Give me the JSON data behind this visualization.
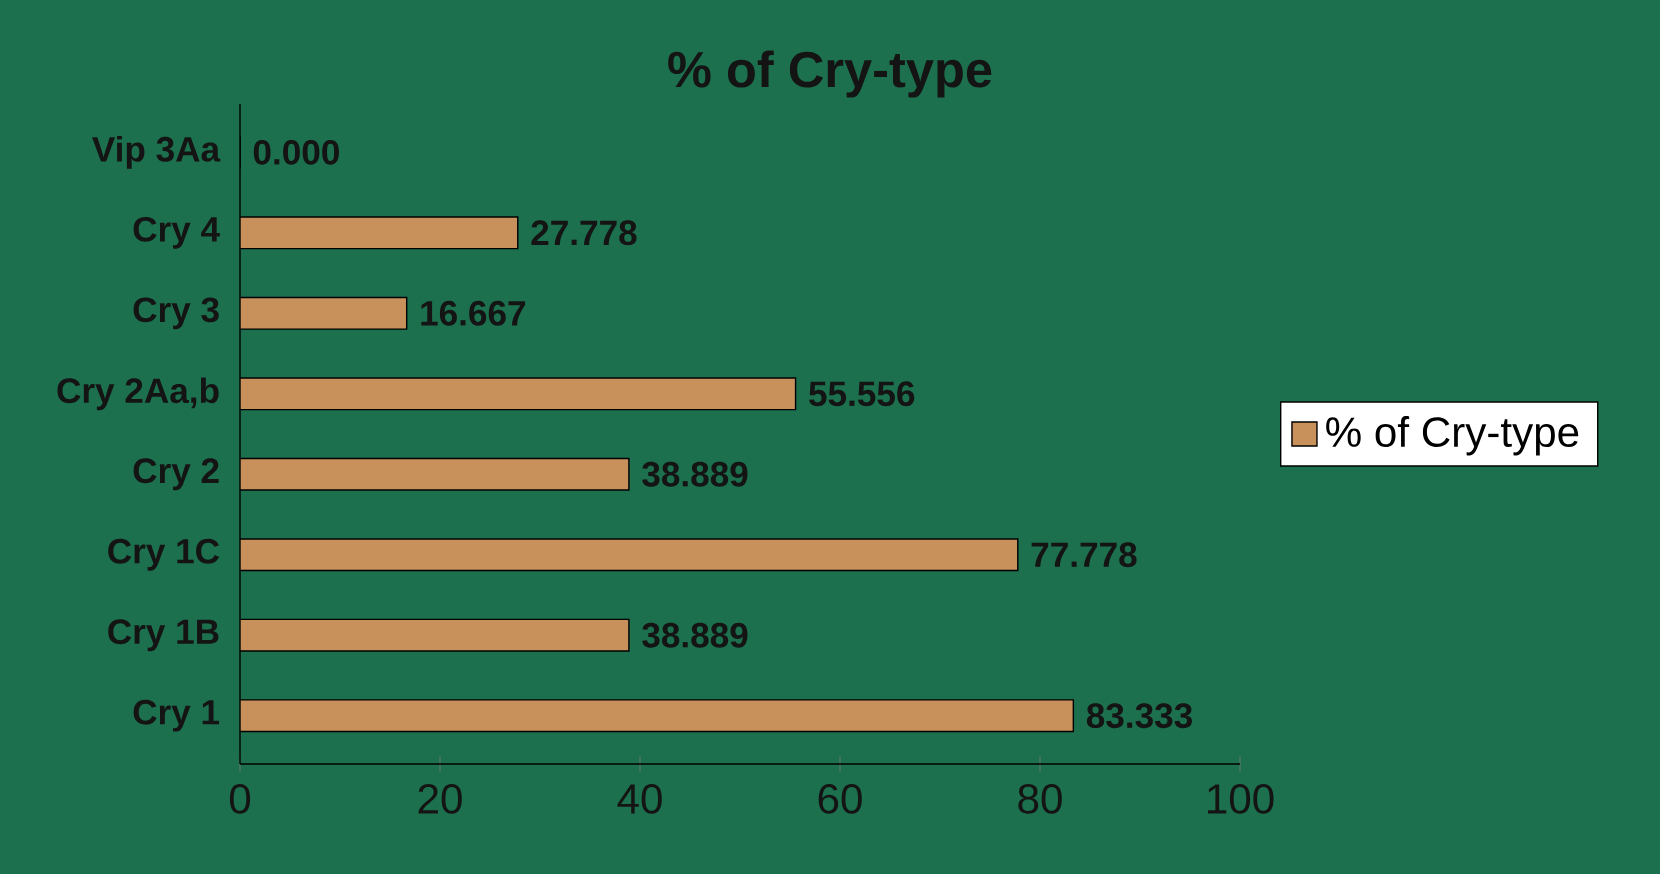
{
  "chart_data": {
    "type": "bar",
    "orientation": "horizontal",
    "title": "% of Cry-type",
    "categories": [
      "Vip 3Aa",
      "Cry 4",
      "Cry 3",
      "Cry 2Aa,b",
      "Cry 2",
      "Cry 1C",
      "Cry 1B",
      "Cry 1"
    ],
    "series": [
      {
        "name": "% of Cry-type",
        "color": "#c8915c",
        "values": [
          0,
          27.778,
          16.667,
          55.556,
          38.889,
          77.778,
          38.889,
          83.333
        ],
        "value_labels": [
          "0.000",
          "27.778",
          "16.667",
          "55.556",
          "38.889",
          "77.778",
          "38.889",
          "83.333"
        ]
      }
    ],
    "xlim": [
      0,
      100
    ],
    "xticks": [
      0,
      20,
      40,
      60,
      80,
      100
    ],
    "legend": "right"
  }
}
